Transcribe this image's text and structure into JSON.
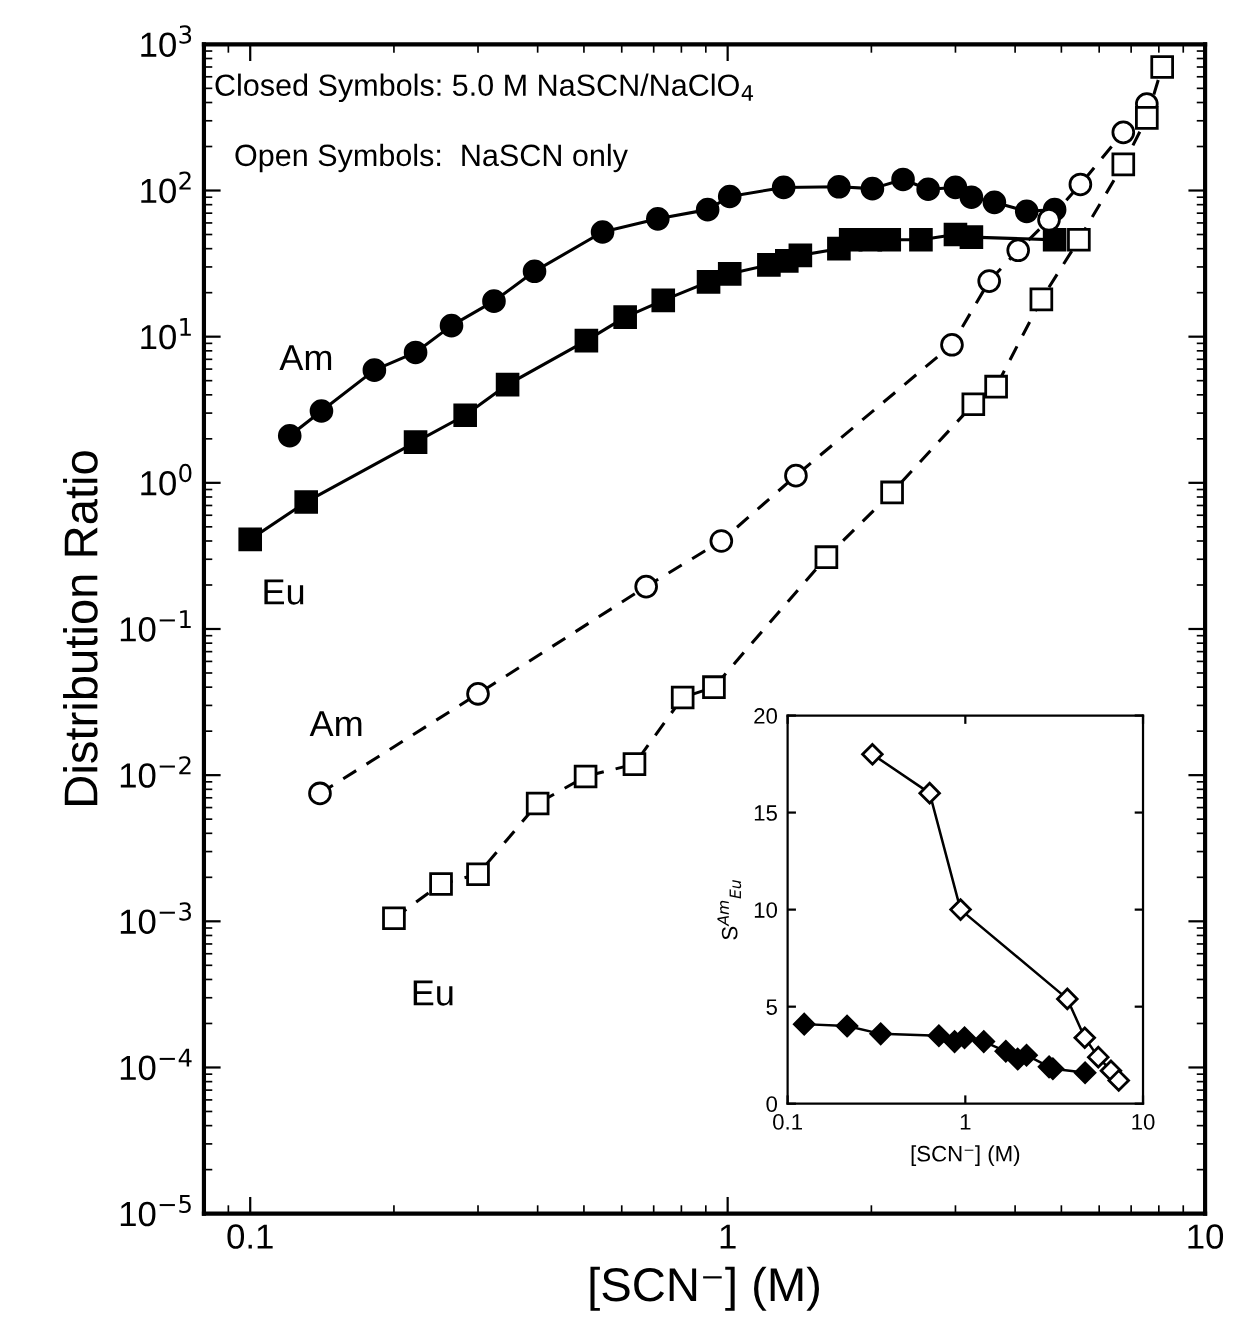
{
  "chart_data": [
    {
      "type": "line",
      "xlabel": "[SCN⁻] (M)",
      "ylabel": "Distribution Ratio",
      "log": "xy",
      "xlim": [
        0.08,
        10
      ],
      "ylim": [
        1e-05,
        1000
      ],
      "xticks": [
        0.1,
        1,
        10
      ],
      "yticks": [
        {
          "value": 1e-05,
          "label": "10$^{−5}$"
        },
        {
          "value": 0.0001,
          "label": "10$^{−4}$"
        },
        {
          "value": 0.001,
          "label": "10$^{−3}$"
        },
        {
          "value": 0.01,
          "label": "10$^{−2}$"
        },
        {
          "value": 0.1,
          "label": "10$^{−1}$"
        },
        {
          "value": 1,
          "label": "10$^{0}$"
        },
        {
          "value": 10,
          "label": "10$^{1}$"
        },
        {
          "value": 100,
          "label": "10$^{2}$"
        },
        {
          "value": 1000,
          "label": "10$^{3}$"
        }
      ],
      "annotations": [
        "Closed Symbols: 5.0 M NaSCN/NaClO$_{4}$",
        "Open Symbols:  NaSCN only"
      ],
      "series": [
        {
          "name": "Am",
          "color": "#000000",
          "marker": "circle",
          "line_style": "solid",
          "x": [
            0.121,
            0.141,
            0.182,
            0.222,
            0.264,
            0.324,
            0.394,
            0.547,
            0.714,
            0.908,
            1.01,
            1.31,
            1.71,
            2.01,
            2.33,
            2.63,
            3.0,
            3.24,
            3.62,
            4.23,
            4.84
          ],
          "values": [
            2.1,
            3.1,
            5.9,
            7.8,
            11.9,
            17.5,
            28,
            52,
            64,
            74,
            91,
            105,
            106,
            103,
            119,
            102,
            105,
            90,
            83,
            72,
            74
          ]
        },
        {
          "name": "Eu",
          "color": "#000000",
          "marker": "square",
          "line_style": "solid",
          "x": [
            0.1,
            0.131,
            0.222,
            0.282,
            0.346,
            0.506,
            0.61,
            0.733,
            0.912,
            1.01,
            1.22,
            1.33,
            1.42,
            1.71,
            1.81,
            1.99,
            2.18,
            2.54,
            3.0,
            3.24,
            4.84
          ],
          "values": [
            0.41,
            0.74,
            1.9,
            2.9,
            4.7,
            9.4,
            13.6,
            17.7,
            23.7,
            26.9,
            31,
            33,
            36,
            40,
            46,
            46,
            46,
            46,
            50,
            48,
            46
          ]
        },
        {
          "name": "Am",
          "color": "#000000",
          "marker": "circle",
          "line_style": "dashed",
          "x": [
            0.14,
            0.3,
            0.675,
            0.97,
            1.39,
            2.95,
            3.53,
            4.06,
            4.71,
            5.48,
            6.74,
            7.55
          ],
          "values": [
            0.0075,
            0.036,
            0.195,
            0.4,
            1.12,
            8.8,
            24,
            39,
            63,
            110,
            250,
            390
          ]
        },
        {
          "name": "Eu",
          "color": "#000000",
          "marker": "square",
          "line_style": "dashed",
          "x": [
            0.2,
            0.251,
            0.3,
            0.4,
            0.504,
            0.638,
            0.805,
            0.936,
            1.61,
            2.21,
            3.27,
            3.65,
            4.54,
            5.44,
            6.74,
            7.55,
            8.13
          ],
          "values": [
            0.00105,
            0.0018,
            0.0021,
            0.0064,
            0.0098,
            0.0119,
            0.034,
            0.04,
            0.31,
            0.86,
            3.45,
            4.55,
            18,
            46,
            151,
            314,
            700
          ]
        }
      ]
    },
    {
      "type": "line",
      "xlabel": "[SCN⁻] (M)",
      "ylabel": "S$^{Am}$$_{Eu}$",
      "log": "x",
      "xlim": [
        0.1,
        10
      ],
      "ylim": [
        0,
        20
      ],
      "xticks": [
        0.1,
        1,
        10
      ],
      "yticks": [
        0,
        5,
        10,
        15,
        20
      ],
      "series": [
        {
          "color": "#000000",
          "marker": "diamond",
          "line_style": "solid",
          "x": [
            0.3,
            0.63,
            0.94,
            3.75,
            4.7,
            5.6,
            6.6,
            7.3
          ],
          "values": [
            18,
            16,
            10,
            5.4,
            3.4,
            2.4,
            1.7,
            1.2
          ]
        },
        {
          "color": "#000000",
          "marker": "diamond",
          "line_style": "solid",
          "x": [
            0.124,
            0.216,
            0.334,
            0.71,
            0.87,
            0.99,
            1.27,
            1.69,
            1.97,
            2.21,
            2.96,
            3.11,
            4.72
          ],
          "values": [
            4.1,
            4.0,
            3.6,
            3.5,
            3.2,
            3.4,
            3.2,
            2.7,
            2.3,
            2.5,
            1.9,
            1.8,
            1.6
          ]
        }
      ]
    }
  ]
}
